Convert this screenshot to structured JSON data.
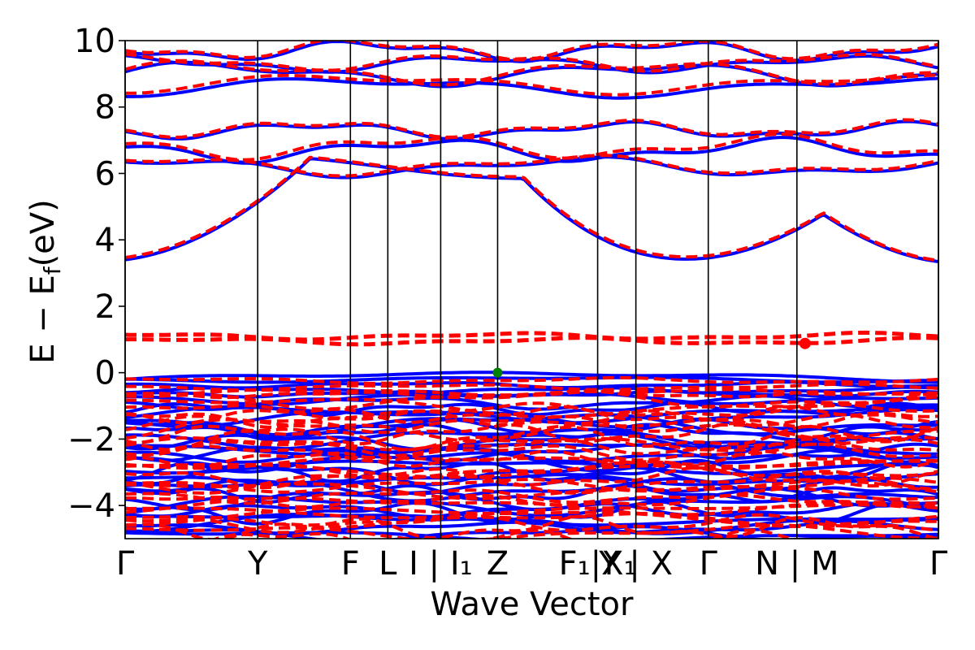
{
  "chart_data": {
    "type": "line",
    "title": "",
    "xlabel": "Wave Vector",
    "ylabel": "E − E",
    "ylabel_subscript": "f",
    "ylabel_unit": "(eV)",
    "ylim": [
      -5,
      10
    ],
    "yticks": [
      -4,
      -2,
      0,
      2,
      4,
      6,
      8,
      10
    ],
    "ytick_labels": [
      "−4",
      "−2",
      "0",
      "2",
      "4",
      "6",
      "8",
      "10"
    ],
    "xlim": [
      0,
      1
    ],
    "kpoints": [
      {
        "x": 0.0,
        "label": "Γ"
      },
      {
        "x": 0.163,
        "label": "Y"
      },
      {
        "x": 0.277,
        "label": "F"
      },
      {
        "x": 0.323,
        "label": "L"
      },
      {
        "x": 0.388,
        "label": "I | I₁"
      },
      {
        "x": 0.458,
        "label": "Z"
      },
      {
        "x": 0.581,
        "label": "F₁|X₁"
      },
      {
        "x": 0.628,
        "label": "Y | X"
      },
      {
        "x": 0.717,
        "label": "Γ"
      },
      {
        "x": 0.826,
        "label": "N | M"
      },
      {
        "x": 1.0,
        "label": "Γ"
      }
    ],
    "grid": false,
    "legend": "none",
    "series": [
      {
        "style": "solid",
        "color": "#0000ff",
        "bands_above": [
          3.3,
          6.2,
          6.7,
          7.3,
          8.6,
          9.0,
          9.3,
          9.7
        ],
        "bands_below_top": -0.05
      },
      {
        "style": "dashed",
        "color": "#ff0000",
        "bands_above": [
          3.35,
          6.25,
          6.8,
          7.35,
          8.7,
          9.05,
          9.35,
          9.75
        ],
        "midgap_bands": [
          0.95,
          1.1
        ],
        "bands_below_top": -0.1
      }
    ],
    "markers": [
      {
        "kind": "vbm",
        "x": 0.458,
        "y": 0.0,
        "color": "#008000"
      },
      {
        "kind": "cbm",
        "x": 0.836,
        "y": 0.88,
        "color": "#ff0000"
      }
    ]
  }
}
